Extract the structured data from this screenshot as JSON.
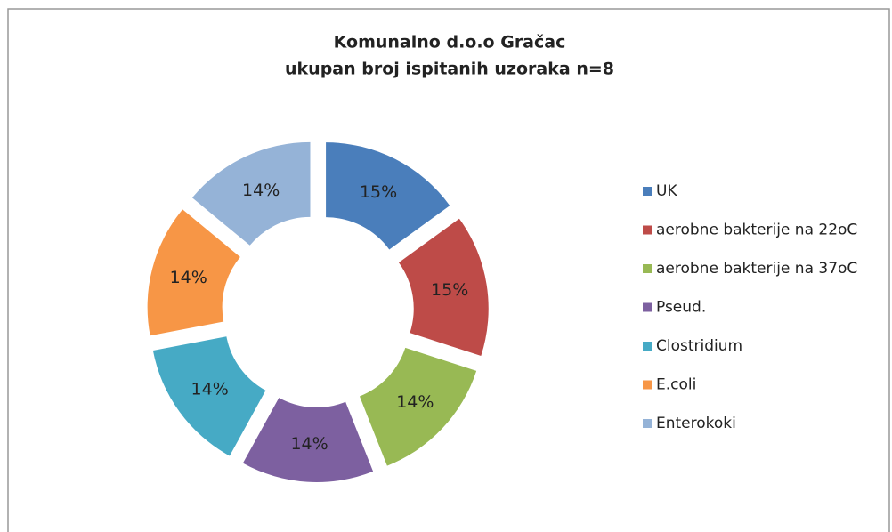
{
  "chart_data": {
    "type": "donut",
    "title": "Komunalno d.o.o Gračac",
    "subtitle": "ukupan broj ispitanih uzoraka n=8",
    "categories": [
      "UK",
      "aerobne bakterije na 22oC",
      "aerobne bakterije na 37oC",
      "Pseud.",
      "Clostridium",
      "E.coli",
      "Enterokoki"
    ],
    "values": [
      15,
      15,
      14,
      14,
      14,
      14,
      14
    ],
    "value_labels": [
      "15%",
      "15%",
      "14%",
      "14%",
      "14%",
      "14%",
      "14%"
    ],
    "colors": [
      "#4a7ebb",
      "#be4b48",
      "#98b954",
      "#7d60a0",
      "#46aac5",
      "#f79646",
      "#95b3d7"
    ],
    "legend": "right"
  }
}
